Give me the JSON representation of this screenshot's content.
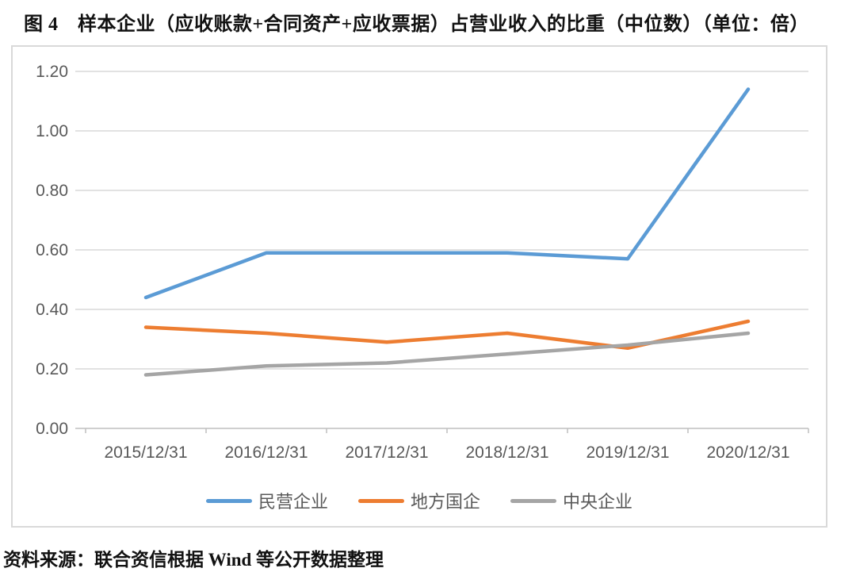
{
  "title": "图 4　样本企业（应收账款+合同资产+应收票据）占营业收入的比重（中位数）（单位：倍）",
  "source_note": "资料来源：联合资信根据 Wind 等公开数据整理",
  "chart_data": {
    "type": "line",
    "title": "样本企业（应收账款+合同资产+应收票据）占营业收入的比重（中位数）（单位：倍）",
    "categories": [
      "2015/12/31",
      "2016/12/31",
      "2017/12/31",
      "2018/12/31",
      "2019/12/31",
      "2020/12/31"
    ],
    "series": [
      {
        "name": "民营企业",
        "color": "#5B9BD5",
        "values": [
          0.44,
          0.59,
          0.59,
          0.59,
          0.57,
          1.14
        ]
      },
      {
        "name": "地方国企",
        "color": "#ED7D31",
        "values": [
          0.34,
          0.32,
          0.29,
          0.32,
          0.27,
          0.36
        ]
      },
      {
        "name": "中央企业",
        "color": "#A5A5A5",
        "values": [
          0.18,
          0.21,
          0.22,
          0.25,
          0.28,
          0.32
        ]
      }
    ],
    "xlabel": "",
    "ylabel": "",
    "ylim": [
      0.0,
      1.2
    ],
    "y_tick_step": 0.2,
    "y_ticks": [
      "0.00",
      "0.20",
      "0.40",
      "0.60",
      "0.80",
      "1.00",
      "1.20"
    ],
    "grid": true,
    "legend_position": "bottom",
    "colors": {
      "gridline": "#D9D9D9",
      "axis_line": "#BFBFBF",
      "tick_label": "#595959"
    }
  }
}
